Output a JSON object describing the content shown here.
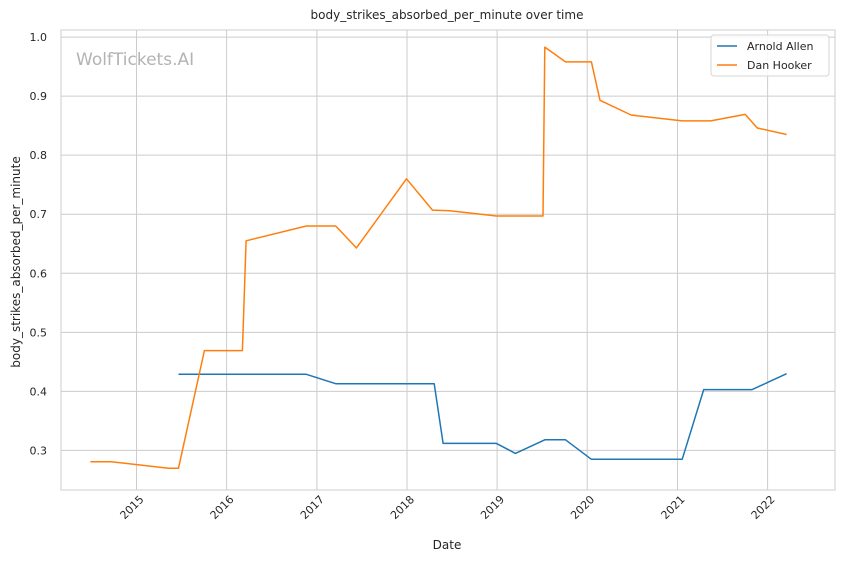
{
  "watermark": "WolfTickets.AI",
  "chart_data": {
    "type": "line",
    "title": "body_strikes_absorbed_per_minute over time",
    "xlabel": "Date",
    "ylabel": "body_strikes_absorbed_per_minute",
    "x_tick_labels": [
      "2015",
      "2016",
      "2017",
      "2018",
      "2019",
      "2020",
      "2021",
      "2022"
    ],
    "y_tick_labels": [
      "0.3",
      "0.4",
      "0.5",
      "0.6",
      "0.7",
      "0.8",
      "0.9",
      "1.0"
    ],
    "xlim": [
      "2014-03-01",
      "2022-10-01"
    ],
    "ylim": [
      0.233,
      1.012
    ],
    "grid": true,
    "legend_position": "top-right",
    "series": [
      {
        "name": "Arnold Allen",
        "color": "#1f77b4",
        "points": [
          [
            "2015-06-20",
            0.429
          ],
          [
            "2016-11-19",
            0.429
          ],
          [
            "2017-03-18",
            0.413
          ],
          [
            "2018-04-21",
            0.413
          ],
          [
            "2018-05-27",
            0.312
          ],
          [
            "2018-12-29",
            0.312
          ],
          [
            "2019-03-16",
            0.295
          ],
          [
            "2019-07-13",
            0.318
          ],
          [
            "2019-10-05",
            0.318
          ],
          [
            "2020-01-18",
            0.285
          ],
          [
            "2021-01-20",
            0.285
          ],
          [
            "2021-04-17",
            0.403
          ],
          [
            "2021-10-30",
            0.403
          ],
          [
            "2022-03-19",
            0.43
          ]
        ]
      },
      {
        "name": "Dan Hooker",
        "color": "#ff7f0e",
        "points": [
          [
            "2014-06-28",
            0.281
          ],
          [
            "2014-09-20",
            0.281
          ],
          [
            "2015-05-10",
            0.27
          ],
          [
            "2015-06-20",
            0.27
          ],
          [
            "2015-10-03",
            0.469
          ],
          [
            "2016-03-05",
            0.469
          ],
          [
            "2016-03-20",
            0.655
          ],
          [
            "2016-11-19",
            0.68
          ],
          [
            "2017-03-18",
            0.68
          ],
          [
            "2017-06-10",
            0.643
          ],
          [
            "2017-12-30",
            0.76
          ],
          [
            "2018-04-14",
            0.707
          ],
          [
            "2018-06-23",
            0.706
          ],
          [
            "2018-12-29",
            0.697
          ],
          [
            "2019-07-06",
            0.697
          ],
          [
            "2019-07-13",
            0.983
          ],
          [
            "2019-10-05",
            0.958
          ],
          [
            "2020-01-18",
            0.958
          ],
          [
            "2020-02-22",
            0.893
          ],
          [
            "2020-06-27",
            0.868
          ],
          [
            "2021-01-20",
            0.858
          ],
          [
            "2021-05-15",
            0.858
          ],
          [
            "2021-10-02",
            0.869
          ],
          [
            "2021-11-20",
            0.846
          ],
          [
            "2022-03-19",
            0.835
          ]
        ]
      }
    ]
  }
}
